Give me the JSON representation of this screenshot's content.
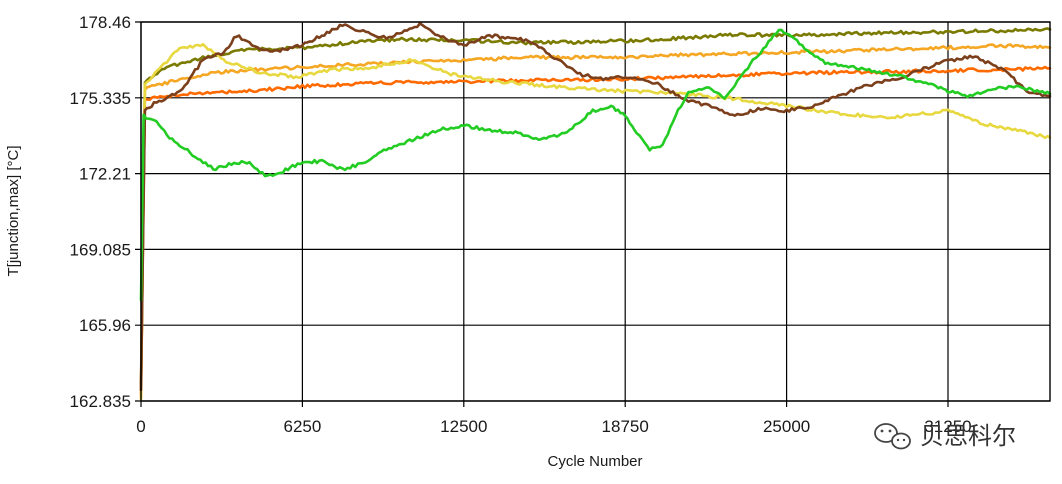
{
  "chart_data": {
    "type": "line",
    "title": "",
    "xlabel": "Cycle Number",
    "ylabel": "T[junction,max] [°C]",
    "xlim": [
      0,
      35200
    ],
    "ylim": [
      162.835,
      178.46
    ],
    "x_ticks": [
      0,
      6250,
      12500,
      18750,
      25000,
      31250
    ],
    "x_tick_labels": [
      "0",
      "6250",
      "12500",
      "18750",
      "25000",
      "31250"
    ],
    "y_ticks": [
      162.835,
      165.96,
      169.085,
      172.21,
      175.335,
      178.46
    ],
    "y_tick_labels": [
      "162.835",
      "165.96",
      "169.085",
      "172.21",
      "175.335",
      "178.46"
    ],
    "grid": true,
    "legend": "none",
    "series": [
      {
        "color": "#7a7a00",
        "points": [
          [
            0,
            163.5
          ],
          [
            150,
            176.0
          ],
          [
            1000,
            176.6
          ],
          [
            2500,
            177.0
          ],
          [
            4000,
            177.3
          ],
          [
            6250,
            177.4
          ],
          [
            8000,
            177.6
          ],
          [
            10000,
            177.75
          ],
          [
            12500,
            177.7
          ],
          [
            15000,
            177.6
          ],
          [
            18000,
            177.65
          ],
          [
            21000,
            177.8
          ],
          [
            23000,
            177.95
          ],
          [
            25000,
            177.9
          ],
          [
            28000,
            178.0
          ],
          [
            31250,
            178.05
          ],
          [
            33000,
            178.1
          ],
          [
            35200,
            178.15
          ]
        ]
      },
      {
        "color": "#f5a623",
        "points": [
          [
            0,
            163.2
          ],
          [
            150,
            175.7
          ],
          [
            1500,
            176.1
          ],
          [
            3000,
            176.4
          ],
          [
            6250,
            176.6
          ],
          [
            9000,
            176.75
          ],
          [
            12500,
            176.9
          ],
          [
            15000,
            177.0
          ],
          [
            18750,
            177.0
          ],
          [
            21000,
            177.1
          ],
          [
            25000,
            177.2
          ],
          [
            28000,
            177.3
          ],
          [
            31250,
            177.4
          ],
          [
            33000,
            177.5
          ],
          [
            35200,
            177.4
          ]
        ]
      },
      {
        "color": "#ff6a00",
        "points": [
          [
            0,
            163.0
          ],
          [
            150,
            175.3
          ],
          [
            2000,
            175.5
          ],
          [
            4000,
            175.6
          ],
          [
            6250,
            175.8
          ],
          [
            9000,
            175.95
          ],
          [
            12500,
            176.0
          ],
          [
            15000,
            176.05
          ],
          [
            18750,
            176.1
          ],
          [
            21000,
            176.2
          ],
          [
            25000,
            176.35
          ],
          [
            28000,
            176.4
          ],
          [
            31250,
            176.45
          ],
          [
            33000,
            176.5
          ],
          [
            35200,
            176.55
          ]
        ]
      },
      {
        "color": "#e8d840",
        "points": [
          [
            0,
            162.9
          ],
          [
            150,
            175.9
          ],
          [
            800,
            176.6
          ],
          [
            1500,
            177.4
          ],
          [
            2400,
            177.5
          ],
          [
            3200,
            176.9
          ],
          [
            4500,
            176.4
          ],
          [
            6000,
            176.2
          ],
          [
            7500,
            176.5
          ],
          [
            9000,
            176.6
          ],
          [
            10500,
            176.9
          ],
          [
            12000,
            176.3
          ],
          [
            14000,
            176.0
          ],
          [
            16000,
            175.8
          ],
          [
            18750,
            175.6
          ],
          [
            21000,
            175.5
          ],
          [
            23000,
            175.3
          ],
          [
            25000,
            175.0
          ],
          [
            27000,
            174.7
          ],
          [
            29000,
            174.5
          ],
          [
            31250,
            174.8
          ],
          [
            32500,
            174.3
          ],
          [
            35200,
            173.7
          ]
        ]
      },
      {
        "color": "#7b3f1c",
        "points": [
          [
            0,
            163.3
          ],
          [
            150,
            174.8
          ],
          [
            500,
            175.1
          ],
          [
            1000,
            175.3
          ],
          [
            1600,
            175.7
          ],
          [
            2400,
            176.9
          ],
          [
            3200,
            177.2
          ],
          [
            3700,
            177.9
          ],
          [
            4200,
            177.6
          ],
          [
            5000,
            177.2
          ],
          [
            6250,
            177.5
          ],
          [
            7000,
            177.9
          ],
          [
            7800,
            178.35
          ],
          [
            8500,
            178.1
          ],
          [
            9500,
            177.8
          ],
          [
            10000,
            178.0
          ],
          [
            10800,
            178.35
          ],
          [
            11500,
            177.9
          ],
          [
            12500,
            177.5
          ],
          [
            13500,
            177.9
          ],
          [
            15000,
            177.7
          ],
          [
            16000,
            177.0
          ],
          [
            17000,
            176.3
          ],
          [
            18000,
            176.1
          ],
          [
            18750,
            176.2
          ],
          [
            20000,
            175.9
          ],
          [
            21000,
            175.3
          ],
          [
            22000,
            175.0
          ],
          [
            23000,
            174.6
          ],
          [
            24000,
            174.9
          ],
          [
            25000,
            174.8
          ],
          [
            26000,
            175.0
          ],
          [
            27000,
            175.4
          ],
          [
            28000,
            175.8
          ],
          [
            29500,
            176.2
          ],
          [
            31000,
            176.8
          ],
          [
            32300,
            177.05
          ],
          [
            33500,
            176.4
          ],
          [
            34300,
            175.6
          ],
          [
            35200,
            175.4
          ]
        ]
      },
      {
        "color": "#22cc22",
        "points": [
          [
            0,
            167.0
          ],
          [
            100,
            174.6
          ],
          [
            600,
            174.3
          ],
          [
            1200,
            173.6
          ],
          [
            2000,
            173.0
          ],
          [
            2800,
            172.4
          ],
          [
            3500,
            172.6
          ],
          [
            4200,
            172.7
          ],
          [
            4800,
            172.1
          ],
          [
            5500,
            172.3
          ],
          [
            6250,
            172.7
          ],
          [
            7000,
            172.7
          ],
          [
            7800,
            172.4
          ],
          [
            8500,
            172.6
          ],
          [
            9500,
            173.2
          ],
          [
            10500,
            173.6
          ],
          [
            11500,
            174.0
          ],
          [
            12500,
            174.2
          ],
          [
            13500,
            174.0
          ],
          [
            14500,
            173.9
          ],
          [
            15500,
            173.6
          ],
          [
            16500,
            173.9
          ],
          [
            17500,
            174.8
          ],
          [
            18200,
            175.0
          ],
          [
            18750,
            174.6
          ],
          [
            19200,
            173.9
          ],
          [
            19700,
            173.2
          ],
          [
            20200,
            173.4
          ],
          [
            20700,
            174.6
          ],
          [
            21200,
            175.6
          ],
          [
            22000,
            175.8
          ],
          [
            22600,
            175.3
          ],
          [
            23200,
            176.2
          ],
          [
            23800,
            177.0
          ],
          [
            24300,
            177.6
          ],
          [
            24700,
            178.15
          ],
          [
            25200,
            177.9
          ],
          [
            25800,
            177.3
          ],
          [
            26500,
            176.8
          ],
          [
            27500,
            176.6
          ],
          [
            28500,
            176.4
          ],
          [
            29500,
            176.2
          ],
          [
            30500,
            175.9
          ],
          [
            31250,
            175.6
          ],
          [
            32000,
            175.4
          ],
          [
            33000,
            175.7
          ],
          [
            34000,
            175.8
          ],
          [
            35200,
            175.5
          ]
        ]
      }
    ]
  },
  "watermark": {
    "text": "贝思科尔"
  }
}
